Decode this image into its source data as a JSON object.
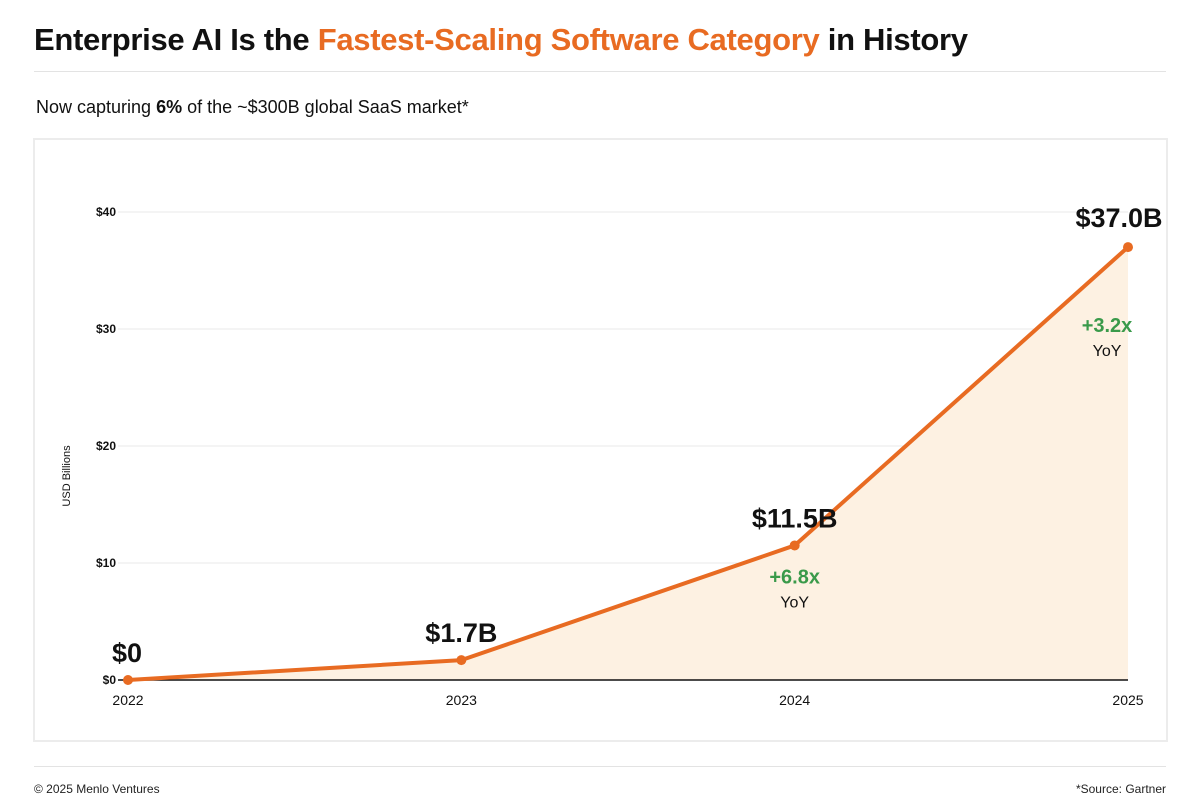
{
  "header": {
    "title_pre": "Enterprise AI Is the ",
    "title_accent": "Fastest-Scaling Software Category",
    "title_post": " in History",
    "subtitle_pre": "Now capturing ",
    "subtitle_bold": "6%",
    "subtitle_post": " of the ~$300B global SaaS market*"
  },
  "footer": {
    "copyright": "© 2025 Menlo Ventures",
    "source": "*Source: Gartner"
  },
  "colors": {
    "accent": "#e86b22",
    "growth": "#3a9a4a",
    "area_fill": "#fdf1e2"
  },
  "chart_data": {
    "type": "area",
    "title": "",
    "xlabel": "",
    "ylabel": "USD Billions",
    "x": [
      "2022",
      "2023",
      "2024",
      "2025"
    ],
    "values": [
      0,
      1.7,
      11.5,
      37.0
    ],
    "ylim": [
      0,
      40
    ],
    "yticks": [
      0,
      10,
      20,
      30,
      40
    ],
    "ytick_labels": [
      "$0",
      "$10",
      "$20",
      "$30",
      "$40"
    ],
    "grid": true,
    "legend": "none",
    "data_labels": [
      "$0",
      "$1.7B",
      "$11.5B",
      "$37.0B"
    ],
    "annotations": [
      {
        "x": "2024",
        "text": "+6.8x",
        "sub": "YoY",
        "position": "below"
      },
      {
        "x": "2025",
        "text": "+3.2x",
        "sub": "YoY",
        "position": "below"
      }
    ]
  }
}
